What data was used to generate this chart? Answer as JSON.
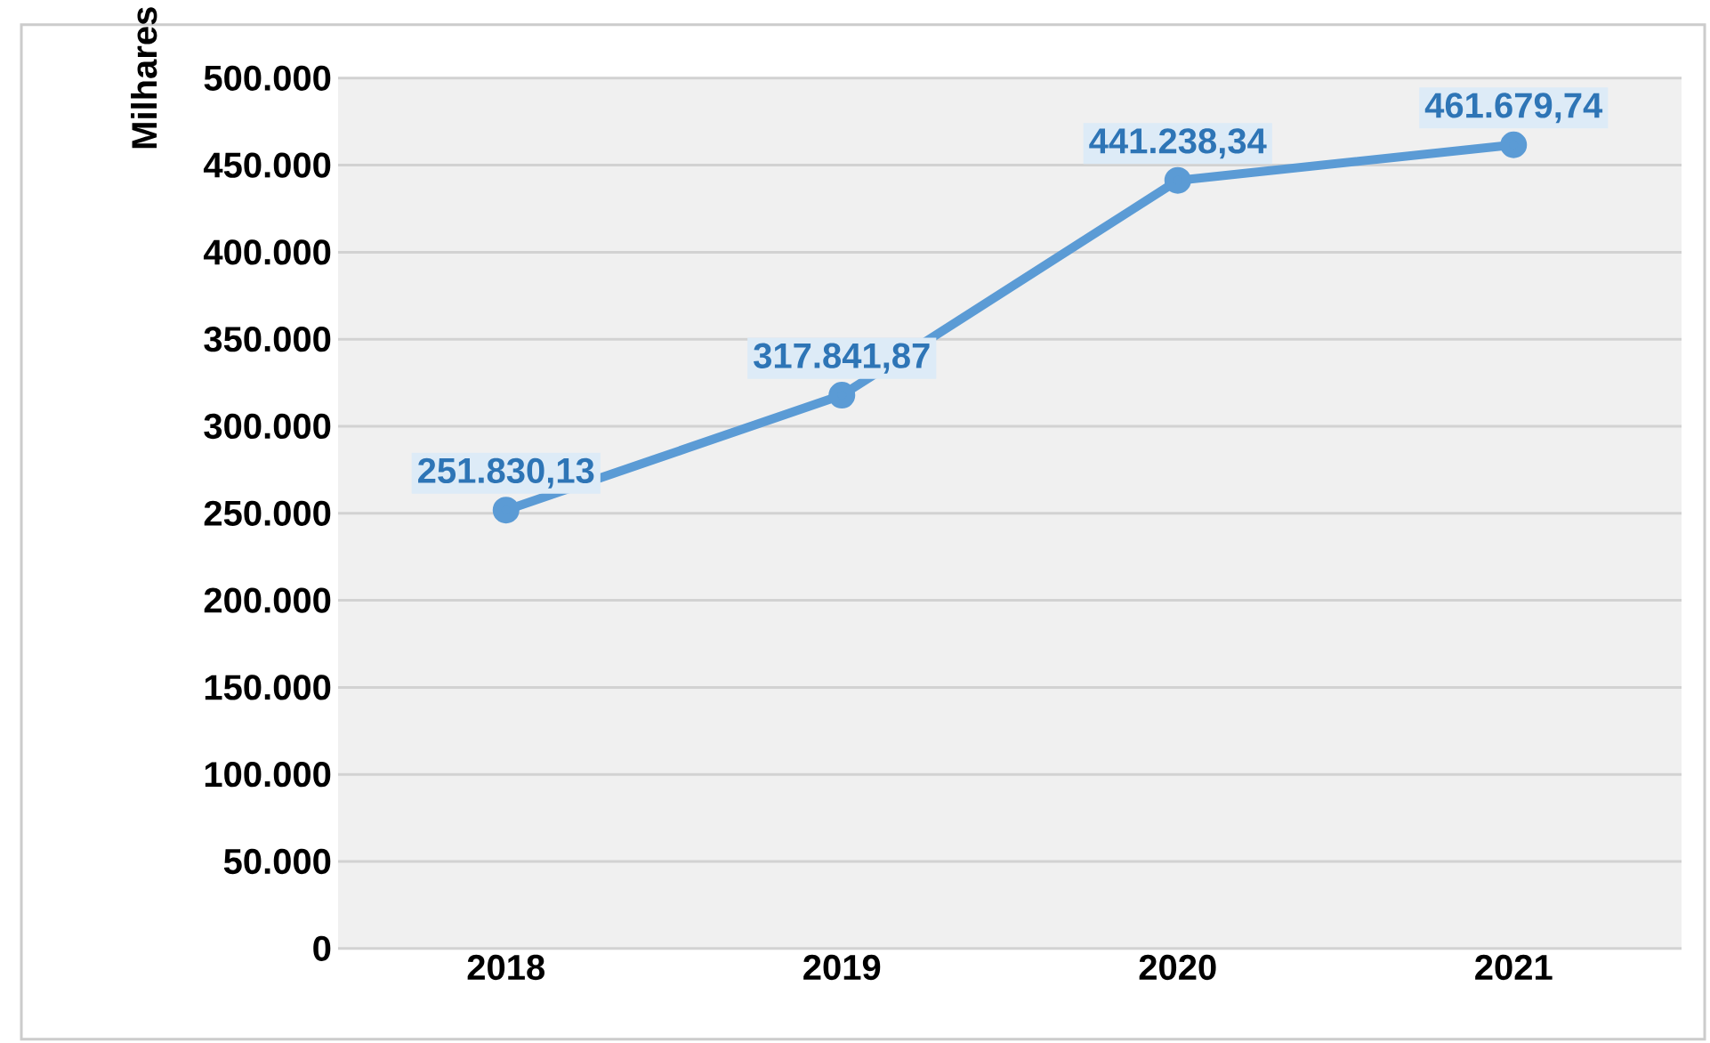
{
  "chart_data": {
    "type": "line",
    "ylabel": "Milhares",
    "categories": [
      "2018",
      "2019",
      "2020",
      "2021"
    ],
    "series": [
      {
        "color": "#5b9bd5",
        "values": [
          251830.13,
          317841.87,
          441238.34,
          461679.74
        ],
        "value_labels": [
          "251.830,13",
          "317.841,87",
          "441.238,34",
          "461.679,74"
        ]
      }
    ],
    "ylim": [
      0,
      500000
    ],
    "yticks": [
      0,
      {
        "value": 50000,
        "label": "50.000"
      },
      {
        "value": 100000,
        "label": "100.000"
      },
      {
        "value": 150000,
        "label": "150.000"
      },
      {
        "value": 200000,
        "label": "200.000"
      },
      {
        "value": 250000,
        "label": "250.000"
      },
      {
        "value": 300000,
        "label": "300.000"
      },
      {
        "value": 350000,
        "label": "350.000"
      },
      {
        "value": 400000,
        "label": "400.000"
      },
      {
        "value": 450000,
        "label": "450.000"
      },
      {
        "value": 500000,
        "label": "500.000"
      }
    ],
    "grid": "y",
    "marker": "circle",
    "line_style": "solid"
  }
}
